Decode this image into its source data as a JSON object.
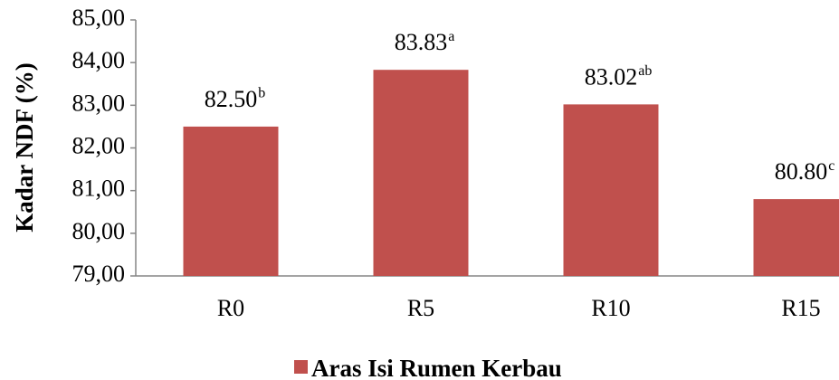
{
  "chart_data": {
    "type": "bar",
    "y_label": "Kadar NDF (%)",
    "categories": [
      "R0",
      "R5",
      "R10",
      "R15"
    ],
    "series": [
      {
        "name": "Aras Isi Rumen Kerbau",
        "color": "#c0504d",
        "values": [
          82.5,
          83.83,
          83.02,
          80.8
        ],
        "value_labels": [
          "82.50",
          "83.83",
          "83.02",
          "80.80"
        ],
        "significance": [
          "b",
          "a",
          "ab",
          "c"
        ]
      }
    ],
    "ylim": [
      79,
      85
    ],
    "yticks": [
      {
        "value": 79,
        "label": "79,00"
      },
      {
        "value": 80,
        "label": "80,00"
      },
      {
        "value": 81,
        "label": "81,00"
      },
      {
        "value": 82,
        "label": "82,00"
      },
      {
        "value": 83,
        "label": "83,00"
      },
      {
        "value": 84,
        "label": "84,00"
      },
      {
        "value": 85,
        "label": "85,00"
      }
    ],
    "grid": false,
    "legend": "bottom"
  }
}
